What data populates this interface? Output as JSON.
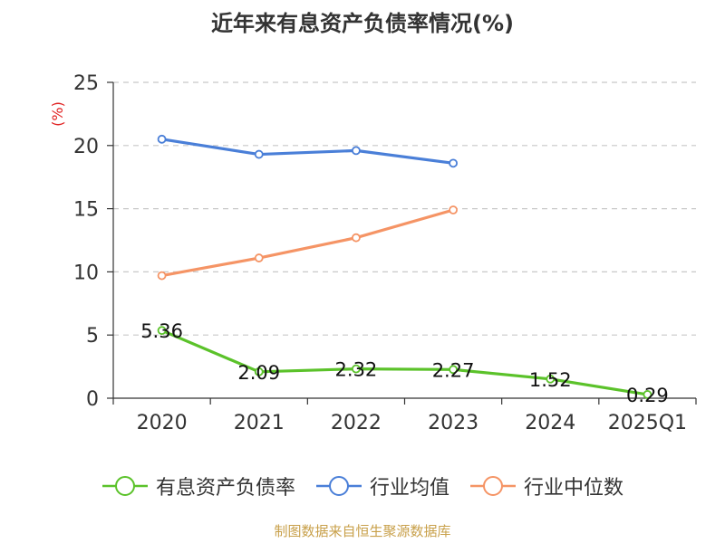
{
  "chart_data": {
    "type": "line",
    "title": "近年来有息资产负债率情况(%)",
    "ylabel": "(%)",
    "xlabel": "",
    "categories": [
      "2020",
      "2021",
      "2022",
      "2023",
      "2024",
      "2025Q1"
    ],
    "ylim": [
      0,
      25
    ],
    "yticks": [
      0,
      5,
      10,
      15,
      20,
      25
    ],
    "grid": true,
    "legend_position": "bottom",
    "series": [
      {
        "name": "有息资产负债率",
        "color": "#5bc22a",
        "values": [
          5.36,
          2.09,
          2.32,
          2.27,
          1.52,
          0.29
        ],
        "labels": [
          "5.36",
          "2.09",
          "2.32",
          "2.27",
          "1.52",
          "0.29"
        ]
      },
      {
        "name": "行业均值",
        "color": "#4a7fd8",
        "values": [
          20.5,
          19.3,
          19.6,
          18.6,
          null,
          null
        ]
      },
      {
        "name": "行业中位数",
        "color": "#f59465",
        "values": [
          9.7,
          11.1,
          12.7,
          14.9,
          null,
          null
        ]
      }
    ]
  },
  "footer": {
    "source": "制图数据来自恒生聚源数据库"
  }
}
